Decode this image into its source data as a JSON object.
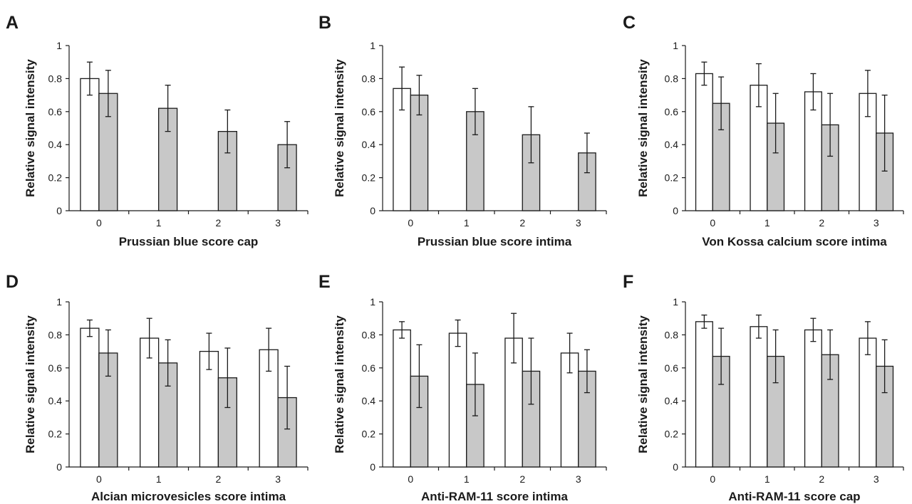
{
  "colors": {
    "open_bar": "#ffffff",
    "filled_bar": "#c8c8c8",
    "stroke": "#1a1a1a"
  },
  "chart_data": [
    {
      "panel": "A",
      "type": "bar",
      "xlabel": "Prussian blue score cap",
      "ylabel": "Relative signal intensity",
      "ylim": [
        0,
        1
      ],
      "yticks": [
        "0",
        "0.2",
        "0.4",
        "0.6",
        "0.8",
        "1"
      ],
      "categories": [
        "0",
        "1",
        "2",
        "3"
      ],
      "series": [
        {
          "color": "#ffffff",
          "values": [
            0.8,
            null,
            null,
            null
          ],
          "errors": [
            0.1,
            null,
            null,
            null
          ]
        },
        {
          "color": "#c8c8c8",
          "values": [
            0.71,
            0.62,
            0.48,
            0.4
          ],
          "errors": [
            0.14,
            0.14,
            0.13,
            0.14
          ]
        }
      ]
    },
    {
      "panel": "B",
      "type": "bar",
      "xlabel": "Prussian blue score intima",
      "ylabel": "Relative signal intensity",
      "ylim": [
        0,
        1
      ],
      "yticks": [
        "0",
        "0.2",
        "0.4",
        "0.6",
        "0.8",
        "1"
      ],
      "categories": [
        "0",
        "1",
        "2",
        "3"
      ],
      "series": [
        {
          "color": "#ffffff",
          "values": [
            0.74,
            null,
            null,
            null
          ],
          "errors": [
            0.13,
            null,
            null,
            null
          ]
        },
        {
          "color": "#c8c8c8",
          "values": [
            0.7,
            0.6,
            0.46,
            0.35
          ],
          "errors": [
            0.12,
            0.14,
            0.17,
            0.12
          ]
        }
      ]
    },
    {
      "panel": "C",
      "type": "bar",
      "xlabel": "Von Kossa calcium score intima",
      "ylabel": "Relative signal intensity",
      "ylim": [
        0,
        1
      ],
      "yticks": [
        "0",
        "0.2",
        "0.4",
        "0.6",
        "0.8",
        "1"
      ],
      "categories": [
        "0",
        "1",
        "2",
        "3"
      ],
      "series": [
        {
          "color": "#ffffff",
          "values": [
            0.83,
            0.76,
            0.72,
            0.71
          ],
          "errors": [
            0.07,
            0.13,
            0.11,
            0.14
          ]
        },
        {
          "color": "#c8c8c8",
          "values": [
            0.65,
            0.53,
            0.52,
            0.47
          ],
          "errors": [
            0.16,
            0.18,
            0.19,
            0.23
          ]
        }
      ]
    },
    {
      "panel": "D",
      "type": "bar",
      "xlabel": "Alcian microvesicles score intima",
      "ylabel": "Relative signal intensity",
      "ylim": [
        0,
        1
      ],
      "yticks": [
        "0",
        "0.2",
        "0.4",
        "0.6",
        "0.8",
        "1"
      ],
      "categories": [
        "0",
        "1",
        "2",
        "3"
      ],
      "series": [
        {
          "color": "#ffffff",
          "values": [
            0.84,
            0.78,
            0.7,
            0.71
          ],
          "errors": [
            0.05,
            0.12,
            0.11,
            0.13
          ]
        },
        {
          "color": "#c8c8c8",
          "values": [
            0.69,
            0.63,
            0.54,
            0.42
          ],
          "errors": [
            0.14,
            0.14,
            0.18,
            0.19
          ]
        }
      ]
    },
    {
      "panel": "E",
      "type": "bar",
      "xlabel": "Anti-RAM-11 score intima",
      "ylabel": "Relative signal intensity",
      "ylim": [
        0,
        1
      ],
      "yticks": [
        "0",
        "0.2",
        "0.4",
        "0.6",
        "0.8",
        "1"
      ],
      "categories": [
        "0",
        "1",
        "2",
        "3"
      ],
      "series": [
        {
          "color": "#ffffff",
          "values": [
            0.83,
            0.81,
            0.78,
            0.69
          ],
          "errors": [
            0.05,
            0.08,
            0.15,
            0.12
          ]
        },
        {
          "color": "#c8c8c8",
          "values": [
            0.55,
            0.5,
            0.58,
            0.58
          ],
          "errors": [
            0.19,
            0.19,
            0.2,
            0.13
          ]
        }
      ]
    },
    {
      "panel": "F",
      "type": "bar",
      "xlabel": "Anti-RAM-11 score cap",
      "ylabel": "Relative signal intensity",
      "ylim": [
        0,
        1
      ],
      "yticks": [
        "0",
        "0.2",
        "0.4",
        "0.6",
        "0.8",
        "1"
      ],
      "categories": [
        "0",
        "1",
        "2",
        "3"
      ],
      "series": [
        {
          "color": "#ffffff",
          "values": [
            0.88,
            0.85,
            0.83,
            0.78
          ],
          "errors": [
            0.04,
            0.07,
            0.07,
            0.1
          ]
        },
        {
          "color": "#c8c8c8",
          "values": [
            0.67,
            0.67,
            0.68,
            0.61
          ],
          "errors": [
            0.17,
            0.16,
            0.15,
            0.16
          ]
        }
      ]
    }
  ]
}
